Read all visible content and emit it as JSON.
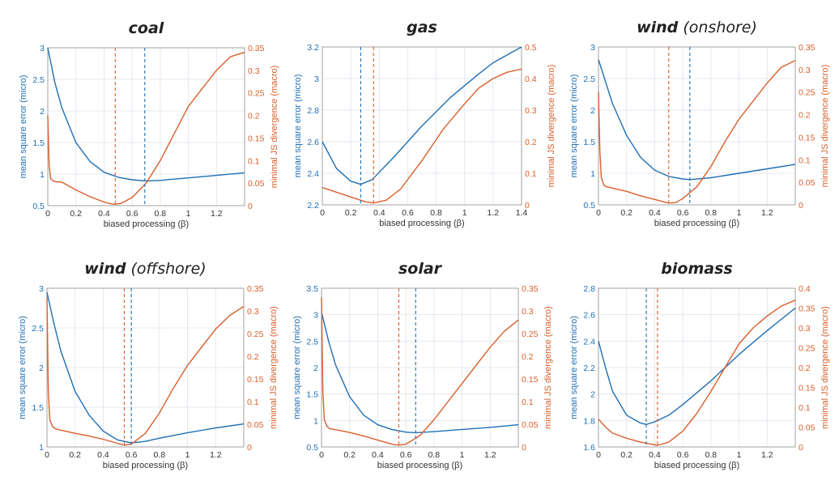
{
  "colors": {
    "mse": "#1f6fb5",
    "js": "#d95f2b",
    "grid": "#dde3ec",
    "axis": "#333333"
  },
  "chart_data": [
    {
      "type": "line",
      "title": "coal",
      "title_suffix": "",
      "xlabel": "biased processing (β)",
      "ylabel_left": "mean square error (micro)",
      "ylabel_right": "minimal JS divergence (macro)",
      "xlim": [
        0,
        1.4
      ],
      "xticks": [
        "0",
        "0.2",
        "0.4",
        "0.6",
        "0.8",
        "1",
        "1.2"
      ],
      "ylim_left": [
        0.5,
        3
      ],
      "yticks_left": [
        "0.5",
        "1",
        "1.5",
        "2",
        "2.5",
        "3"
      ],
      "ylim_right": [
        0,
        0.35
      ],
      "yticks_right": [
        "0",
        "0.05",
        "0.1",
        "0.15",
        "0.2",
        "0.25",
        "0.3",
        "0.35"
      ],
      "series": [
        {
          "name": "mean square error (micro)",
          "axis": "left",
          "x": [
            0,
            0.05,
            0.1,
            0.2,
            0.3,
            0.4,
            0.5,
            0.6,
            0.7,
            0.8,
            0.9,
            1.0,
            1.2,
            1.4
          ],
          "y": [
            3.0,
            2.45,
            2.05,
            1.5,
            1.2,
            1.03,
            0.95,
            0.91,
            0.89,
            0.9,
            0.92,
            0.94,
            0.98,
            1.02
          ]
        },
        {
          "name": "minimal JS divergence (macro)",
          "axis": "right",
          "x": [
            0,
            0.01,
            0.02,
            0.04,
            0.06,
            0.1,
            0.2,
            0.3,
            0.4,
            0.45,
            0.48,
            0.52,
            0.6,
            0.7,
            0.8,
            0.9,
            1.0,
            1.1,
            1.2,
            1.3,
            1.4
          ],
          "y": [
            0.2,
            0.09,
            0.06,
            0.055,
            0.053,
            0.052,
            0.035,
            0.02,
            0.008,
            0.004,
            0.003,
            0.005,
            0.018,
            0.05,
            0.1,
            0.16,
            0.22,
            0.26,
            0.3,
            0.33,
            0.34
          ]
        }
      ],
      "vlines": [
        {
          "x": 0.48,
          "color": "js"
        },
        {
          "x": 0.69,
          "color": "mse"
        }
      ]
    },
    {
      "type": "line",
      "title": "gas",
      "title_suffix": "",
      "xlabel": "biased processing (β)",
      "ylabel_left": "mean square error (micro)",
      "ylabel_right": "minimal JS divergence (macro)",
      "xlim": [
        0,
        1.4
      ],
      "xticks": [
        "0",
        "0.2",
        "0.4",
        "0.6",
        "0.8",
        "1",
        "1.2",
        "1.4"
      ],
      "ylim_left": [
        2.2,
        3.2
      ],
      "yticks_left": [
        "2.2",
        "2.4",
        "2.6",
        "2.8",
        "3",
        "3.2"
      ],
      "ylim_right": [
        0,
        0.5
      ],
      "yticks_right": [
        "0",
        "0.1",
        "0.2",
        "0.3",
        "0.4",
        "0.5"
      ],
      "series": [
        {
          "name": "mean square error (micro)",
          "axis": "left",
          "x": [
            0,
            0.1,
            0.2,
            0.27,
            0.35,
            0.5,
            0.7,
            0.9,
            1.1,
            1.2,
            1.4
          ],
          "y": [
            2.6,
            2.43,
            2.35,
            2.33,
            2.36,
            2.5,
            2.7,
            2.88,
            3.03,
            3.1,
            3.2
          ]
        },
        {
          "name": "minimal JS divergence (macro)",
          "axis": "right",
          "x": [
            0,
            0.1,
            0.2,
            0.3,
            0.36,
            0.45,
            0.55,
            0.7,
            0.85,
            1.0,
            1.1,
            1.2,
            1.3,
            1.4
          ],
          "y": [
            0.055,
            0.04,
            0.025,
            0.01,
            0.006,
            0.015,
            0.05,
            0.14,
            0.24,
            0.32,
            0.37,
            0.4,
            0.42,
            0.43
          ]
        }
      ],
      "vlines": [
        {
          "x": 0.27,
          "color": "mse"
        },
        {
          "x": 0.36,
          "color": "js"
        }
      ]
    },
    {
      "type": "line",
      "title": "wind",
      "title_suffix": "(onshore)",
      "xlabel": "biased processing (β)",
      "ylabel_left": "mean square error (micro)",
      "ylabel_right": "minimal JS divergence (macro)",
      "xlim": [
        0,
        1.4
      ],
      "xticks": [
        "0",
        "0.2",
        "0.4",
        "0.6",
        "0.8",
        "1",
        "1.2"
      ],
      "ylim_left": [
        0.5,
        3
      ],
      "yticks_left": [
        "0.5",
        "1",
        "1.5",
        "2",
        "2.5",
        "3"
      ],
      "ylim_right": [
        0,
        0.35
      ],
      "yticks_right": [
        "0",
        "0.05",
        "0.1",
        "0.15",
        "0.2",
        "0.25",
        "0.3",
        "0.35"
      ],
      "series": [
        {
          "name": "mean square error (micro)",
          "axis": "left",
          "x": [
            0,
            0.05,
            0.1,
            0.2,
            0.3,
            0.4,
            0.5,
            0.6,
            0.65,
            0.8,
            1.0,
            1.2,
            1.4
          ],
          "y": [
            2.8,
            2.45,
            2.1,
            1.6,
            1.25,
            1.05,
            0.95,
            0.91,
            0.9,
            0.93,
            1.0,
            1.07,
            1.14
          ]
        },
        {
          "name": "minimal JS divergence (macro)",
          "axis": "right",
          "x": [
            0,
            0.01,
            0.02,
            0.04,
            0.06,
            0.1,
            0.2,
            0.3,
            0.4,
            0.5,
            0.55,
            0.6,
            0.7,
            0.8,
            0.9,
            1.0,
            1.1,
            1.2,
            1.3,
            1.4
          ],
          "y": [
            0.25,
            0.12,
            0.06,
            0.043,
            0.04,
            0.037,
            0.03,
            0.02,
            0.012,
            0.004,
            0.005,
            0.014,
            0.04,
            0.085,
            0.14,
            0.19,
            0.23,
            0.27,
            0.305,
            0.32
          ]
        }
      ],
      "vlines": [
        {
          "x": 0.5,
          "color": "js"
        },
        {
          "x": 0.65,
          "color": "mse"
        }
      ]
    },
    {
      "type": "line",
      "title": "wind",
      "title_suffix": "(offshore)",
      "xlabel": "biased processing (β)",
      "ylabel_left": "mean square error (micro)",
      "ylabel_right": "minimal JS divergence (macro)",
      "xlim": [
        0,
        1.4
      ],
      "xticks": [
        "0",
        "0.2",
        "0.4",
        "0.6",
        "0.8",
        "1",
        "1.2"
      ],
      "ylim_left": [
        1,
        3
      ],
      "yticks_left": [
        "1",
        "1.5",
        "2",
        "2.5",
        "3"
      ],
      "ylim_right": [
        0,
        0.35
      ],
      "yticks_right": [
        "0",
        "0.05",
        "0.1",
        "0.15",
        "0.2",
        "0.25",
        "0.3",
        "0.35"
      ],
      "series": [
        {
          "name": "mean square error (micro)",
          "axis": "left",
          "x": [
            0,
            0.05,
            0.1,
            0.2,
            0.3,
            0.4,
            0.5,
            0.6,
            0.7,
            0.8,
            1.0,
            1.2,
            1.4
          ],
          "y": [
            2.95,
            2.55,
            2.2,
            1.7,
            1.4,
            1.2,
            1.09,
            1.05,
            1.07,
            1.11,
            1.18,
            1.24,
            1.29
          ]
        },
        {
          "name": "minimal JS divergence (macro)",
          "axis": "right",
          "x": [
            0,
            0.01,
            0.02,
            0.04,
            0.06,
            0.1,
            0.2,
            0.3,
            0.4,
            0.5,
            0.55,
            0.6,
            0.7,
            0.8,
            0.9,
            1.0,
            1.1,
            1.2,
            1.3,
            1.4
          ],
          "y": [
            0.33,
            0.12,
            0.06,
            0.045,
            0.04,
            0.037,
            0.03,
            0.024,
            0.017,
            0.008,
            0.004,
            0.006,
            0.03,
            0.075,
            0.13,
            0.18,
            0.22,
            0.26,
            0.29,
            0.31
          ]
        }
      ],
      "vlines": [
        {
          "x": 0.55,
          "color": "js"
        },
        {
          "x": 0.6,
          "color": "mse"
        }
      ]
    },
    {
      "type": "line",
      "title": "solar",
      "title_suffix": "",
      "xlabel": "biased processing (β)",
      "ylabel_left": "mean square error (micro)",
      "ylabel_right": "minimal JS divergence (macro)",
      "xlim": [
        0,
        1.4
      ],
      "xticks": [
        "0",
        "0.2",
        "0.4",
        "0.6",
        "0.8",
        "1",
        "1.2"
      ],
      "ylim_left": [
        0.5,
        3.5
      ],
      "yticks_left": [
        "0.5",
        "1",
        "1.5",
        "2",
        "2.5",
        "3",
        "3.5"
      ],
      "ylim_right": [
        0,
        0.35
      ],
      "yticks_right": [
        "0",
        "0.05",
        "0.1",
        "0.15",
        "0.2",
        "0.25",
        "0.3",
        "0.35"
      ],
      "series": [
        {
          "name": "mean square error (micro)",
          "axis": "left",
          "x": [
            0,
            0.05,
            0.1,
            0.2,
            0.3,
            0.4,
            0.5,
            0.6,
            0.67,
            0.8,
            1.0,
            1.2,
            1.4
          ],
          "y": [
            3.05,
            2.5,
            2.05,
            1.45,
            1.1,
            0.92,
            0.83,
            0.78,
            0.77,
            0.79,
            0.83,
            0.87,
            0.92
          ]
        },
        {
          "name": "minimal JS divergence (macro)",
          "axis": "right",
          "x": [
            0,
            0.01,
            0.02,
            0.04,
            0.06,
            0.1,
            0.2,
            0.3,
            0.4,
            0.5,
            0.55,
            0.6,
            0.7,
            0.8,
            0.9,
            1.0,
            1.1,
            1.2,
            1.3,
            1.4
          ],
          "y": [
            0.33,
            0.12,
            0.06,
            0.045,
            0.04,
            0.038,
            0.032,
            0.024,
            0.015,
            0.006,
            0.004,
            0.006,
            0.025,
            0.06,
            0.1,
            0.14,
            0.18,
            0.22,
            0.255,
            0.28
          ]
        }
      ],
      "vlines": [
        {
          "x": 0.55,
          "color": "js"
        },
        {
          "x": 0.67,
          "color": "mse"
        }
      ]
    },
    {
      "type": "line",
      "title": "biomass",
      "title_suffix": "",
      "xlabel": "biased processing (β)",
      "ylabel_left": "mean square error (micro)",
      "ylabel_right": "minimal JS divergence (macro)",
      "xlim": [
        0,
        1.4
      ],
      "xticks": [
        "0",
        "0.2",
        "0.4",
        "0.6",
        "0.8",
        "1",
        "1.2"
      ],
      "ylim_left": [
        1.6,
        2.8
      ],
      "yticks_left": [
        "1.6",
        "1.8",
        "2",
        "2.2",
        "2.4",
        "2.6",
        "2.8"
      ],
      "ylim_right": [
        0,
        0.4
      ],
      "yticks_right": [
        "0",
        "0.05",
        "0.1",
        "0.15",
        "0.2",
        "0.25",
        "0.3",
        "0.35",
        "0.4"
      ],
      "series": [
        {
          "name": "mean square error (micro)",
          "axis": "left",
          "x": [
            0,
            0.05,
            0.1,
            0.2,
            0.3,
            0.34,
            0.4,
            0.5,
            0.6,
            0.8,
            1.0,
            1.2,
            1.4
          ],
          "y": [
            2.4,
            2.2,
            2.02,
            1.84,
            1.78,
            1.77,
            1.79,
            1.84,
            1.92,
            2.1,
            2.3,
            2.48,
            2.65
          ]
        },
        {
          "name": "minimal JS divergence (macro)",
          "axis": "right",
          "x": [
            0,
            0.05,
            0.1,
            0.2,
            0.3,
            0.42,
            0.5,
            0.6,
            0.7,
            0.8,
            0.9,
            1.0,
            1.1,
            1.2,
            1.3,
            1.4
          ],
          "y": [
            0.07,
            0.05,
            0.035,
            0.022,
            0.012,
            0.004,
            0.012,
            0.04,
            0.085,
            0.14,
            0.2,
            0.26,
            0.3,
            0.33,
            0.355,
            0.37
          ]
        }
      ],
      "vlines": [
        {
          "x": 0.34,
          "color": "mse"
        },
        {
          "x": 0.42,
          "color": "js"
        }
      ]
    }
  ]
}
